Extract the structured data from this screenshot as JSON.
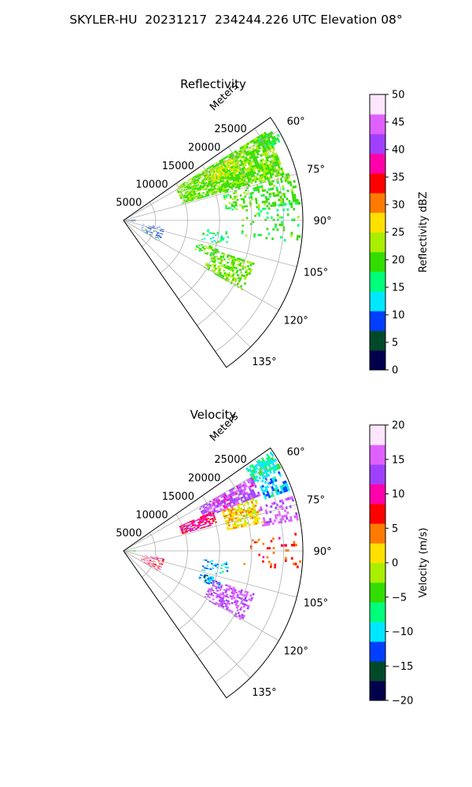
{
  "figure": {
    "suptitle": "SKYLER-HU  20231217  234244.226 UTC Elevation 08°"
  },
  "chart_data": [
    {
      "type": "heatmap",
      "projection": "polar-sector",
      "title": "Reflectivity",
      "radial_label": "Meters",
      "azimuth_range_deg": [
        55,
        145
      ],
      "radial_range_m": [
        0,
        28000
      ],
      "radial_ticks": [
        5000,
        10000,
        15000,
        20000,
        25000
      ],
      "radial_tick_labels": [
        "5000",
        "10000",
        "15000",
        "20000",
        "25000"
      ],
      "angular_ticks_deg": [
        60,
        75,
        90,
        105,
        120,
        135
      ],
      "angular_tick_labels": [
        "60°",
        "75°",
        "90°",
        "105°",
        "120°",
        "135°"
      ],
      "grid": true,
      "colorbar": {
        "label": "Reflectivity dBZ",
        "range": [
          0,
          50
        ],
        "ticks": [
          0,
          5,
          10,
          15,
          20,
          25,
          30,
          35,
          40,
          45,
          50
        ],
        "tick_labels": [
          "0",
          "5",
          "10",
          "15",
          "20",
          "25",
          "30",
          "35",
          "40",
          "45",
          "50"
        ],
        "colormap_stops": [
          "#00004c",
          "#004a2a",
          "#003fff",
          "#00e8ff",
          "#00ff7a",
          "#33dd00",
          "#aaee00",
          "#ffe000",
          "#ff7a00",
          "#ff0000",
          "#ff00aa",
          "#a040ff",
          "#e060ff",
          "#ffe6ff"
        ]
      },
      "echo_regions": [
        {
          "az": [
            58,
            74
          ],
          "r": [
            9500,
            26000
          ],
          "value": 21,
          "density": 0.8
        },
        {
          "az": [
            60,
            67
          ],
          "r": [
            14500,
            19500
          ],
          "value": 24,
          "density": 0.6
        },
        {
          "az": [
            74,
            84
          ],
          "r": [
            16000,
            27500
          ],
          "value": 20,
          "density": 0.4
        },
        {
          "az": [
            59,
            63
          ],
          "r": [
            24500,
            27500
          ],
          "value": 19,
          "density": 0.6
        },
        {
          "az": [
            84,
            97
          ],
          "r": [
            18500,
            27500
          ],
          "value": 19,
          "density": 0.12
        },
        {
          "az": [
            96,
            104
          ],
          "r": [
            12500,
            16500
          ],
          "value": 16,
          "density": 0.25
        },
        {
          "az": [
            108,
            120
          ],
          "r": [
            14500,
            21500
          ],
          "value": 21,
          "density": 0.55
        },
        {
          "az": [
            106,
            112
          ],
          "r": [
            12000,
            15500
          ],
          "value": 20,
          "density": 0.45
        },
        {
          "az": [
            85,
            96
          ],
          "r": [
            0,
            1800
          ],
          "value": 6,
          "density": 0.55
        },
        {
          "az": [
            100,
            120
          ],
          "r": [
            3000,
            6500
          ],
          "value": 8,
          "density": 0.25
        }
      ]
    },
    {
      "type": "heatmap",
      "projection": "polar-sector",
      "title": "Velocity",
      "radial_label": "Meters",
      "azimuth_range_deg": [
        55,
        145
      ],
      "radial_range_m": [
        0,
        28000
      ],
      "radial_ticks": [
        5000,
        10000,
        15000,
        20000,
        25000
      ],
      "radial_tick_labels": [
        "5000",
        "10000",
        "15000",
        "20000",
        "25000"
      ],
      "angular_ticks_deg": [
        60,
        75,
        90,
        105,
        120,
        135
      ],
      "angular_tick_labels": [
        "60°",
        "75°",
        "90°",
        "105°",
        "120°",
        "135°"
      ],
      "grid": true,
      "colorbar": {
        "label": "Velocity (m/s)",
        "range": [
          -20,
          20
        ],
        "ticks": [
          -20,
          -15,
          -10,
          -5,
          0,
          5,
          10,
          15,
          20
        ],
        "tick_labels": [
          "−20",
          "−15",
          "−10",
          "−5",
          "0",
          "5",
          "10",
          "15",
          "20"
        ],
        "colormap_stops": [
          "#00004c",
          "#004a2a",
          "#003fff",
          "#00e8ff",
          "#00ff7a",
          "#33dd00",
          "#aaee00",
          "#ffe000",
          "#ff7a00",
          "#ff0000",
          "#ff00aa",
          "#a040ff",
          "#e060ff",
          "#ffe6ff"
        ]
      },
      "echo_regions": [
        {
          "az": [
            56,
            62
          ],
          "r": [
            23000,
            27500
          ],
          "value": -8,
          "density": 0.75
        },
        {
          "az": [
            62,
            70
          ],
          "r": [
            23500,
            27500
          ],
          "value": -11,
          "density": 0.5
        },
        {
          "az": [
            60,
            68
          ],
          "r": [
            13500,
            23000
          ],
          "value": 14,
          "density": 0.75
        },
        {
          "az": [
            66,
            74
          ],
          "r": [
            9500,
            15000
          ],
          "value": 9,
          "density": 0.75
        },
        {
          "az": [
            68,
            78
          ],
          "r": [
            16500,
            22000
          ],
          "value": 1,
          "density": 0.7
        },
        {
          "az": [
            72,
            80
          ],
          "r": [
            22000,
            27500
          ],
          "value": 15,
          "density": 0.5
        },
        {
          "az": [
            84,
            96
          ],
          "r": [
            18500,
            27500
          ],
          "value": 6,
          "density": 0.1
        },
        {
          "az": [
            96,
            104
          ],
          "r": [
            12500,
            16500
          ],
          "value": -11,
          "density": 0.25
        },
        {
          "az": [
            106,
            111
          ],
          "r": [
            12500,
            16000
          ],
          "value": -12,
          "density": 0.5
        },
        {
          "az": [
            108,
            120
          ],
          "r": [
            14500,
            21500
          ],
          "value": 15,
          "density": 0.55
        },
        {
          "az": [
            85,
            96
          ],
          "r": [
            0,
            1800
          ],
          "value": -5,
          "density": 0.45
        },
        {
          "az": [
            100,
            120
          ],
          "r": [
            3000,
            6500
          ],
          "value": 8,
          "density": 0.25
        }
      ]
    }
  ]
}
